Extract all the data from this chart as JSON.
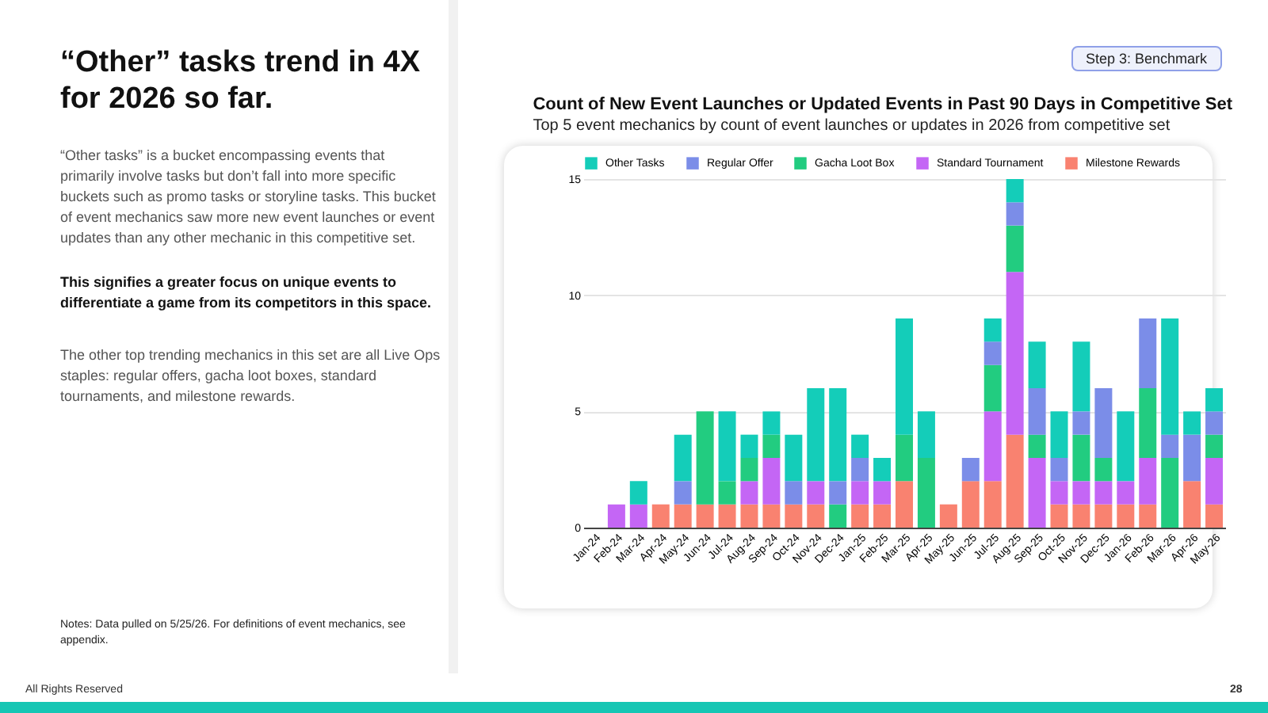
{
  "chart_data": {
    "type": "bar",
    "stacked": true,
    "title": "Count of New Event Launches or Updated Events in Past 90 Days in Competitive Set",
    "subtitle": "Top 5 event mechanics by count of event launches or updates in 2026 from competitive set",
    "categories": [
      "Jan-24",
      "Feb-24",
      "Mar-24",
      "Apr-24",
      "May-24",
      "Jun-24",
      "Jul-24",
      "Aug-24",
      "Sep-24",
      "Oct-24",
      "Nov-24",
      "Dec-24",
      "Jan-25",
      "Feb-25",
      "Mar-25",
      "Apr-25",
      "May-25",
      "Jun-25",
      "Jul-25",
      "Aug-25",
      "Sep-25",
      "Oct-25",
      "Nov-25",
      "Dec-25",
      "Jan-26",
      "Feb-26",
      "Mar-26",
      "Apr-26",
      "May-26"
    ],
    "series": [
      {
        "name": "Milestone Rewards",
        "color": "#f98270",
        "values": [
          0,
          0,
          0,
          1,
          1,
          1,
          1,
          1,
          1,
          1,
          1,
          0,
          1,
          1,
          2,
          0,
          1,
          2,
          2,
          4,
          0,
          1,
          1,
          1,
          1,
          1,
          0,
          2,
          1
        ]
      },
      {
        "name": "Standard Tournament",
        "color": "#c466f5",
        "values": [
          0,
          1,
          1,
          0,
          0,
          0,
          0,
          1,
          2,
          0,
          1,
          0,
          1,
          1,
          0,
          0,
          0,
          0,
          3,
          7,
          3,
          1,
          1,
          1,
          1,
          2,
          0,
          0,
          2
        ]
      },
      {
        "name": "Gacha Loot Box",
        "color": "#22cc80",
        "values": [
          0,
          0,
          0,
          0,
          0,
          4,
          1,
          1,
          1,
          0,
          0,
          1,
          0,
          0,
          2,
          3,
          0,
          0,
          2,
          2,
          1,
          0,
          2,
          1,
          0,
          3,
          3,
          0,
          1
        ]
      },
      {
        "name": "Regular Offer",
        "color": "#7b8de8",
        "values": [
          0,
          0,
          0,
          0,
          1,
          0,
          0,
          0,
          0,
          1,
          0,
          1,
          1,
          0,
          0,
          0,
          0,
          1,
          1,
          1,
          2,
          1,
          1,
          3,
          0,
          3,
          1,
          2,
          1
        ]
      },
      {
        "name": "Other Tasks",
        "color": "#14cdb9",
        "values": [
          0,
          0,
          1,
          0,
          2,
          0,
          3,
          1,
          1,
          2,
          4,
          4,
          1,
          1,
          5,
          2,
          0,
          0,
          1,
          1,
          2,
          2,
          3,
          0,
          3,
          0,
          5,
          1,
          1
        ]
      }
    ],
    "ylim": [
      0,
      15
    ],
    "yticks": [
      0,
      5,
      10,
      15
    ],
    "grid": "y",
    "legend": "top",
    "annotations": [
      "“Other” tasks trend in 4X for 2026 so far.",
      "“Other tasks” is a bucket encompassing events that primarily involve tasks but don’t fall into more specific buckets such as promo tasks or storyline tasks. This bucket of event mechanics saw more new event launches or event updates than any other mechanic in this competitive set.",
      "This signifies a greater focus on unique events to differentiate a game from its competitors in this space.",
      "The other top trending mechanics in this set are all Live Ops staples: regular offers, gacha loot boxes, standard tournaments, and milestone rewards.",
      "Notes: Data pulled on 5/25/26. For definitions of event mechanics, see appendix.",
      "Step 3: Benchmark",
      "All Rights Reserved",
      "28"
    ]
  }
}
